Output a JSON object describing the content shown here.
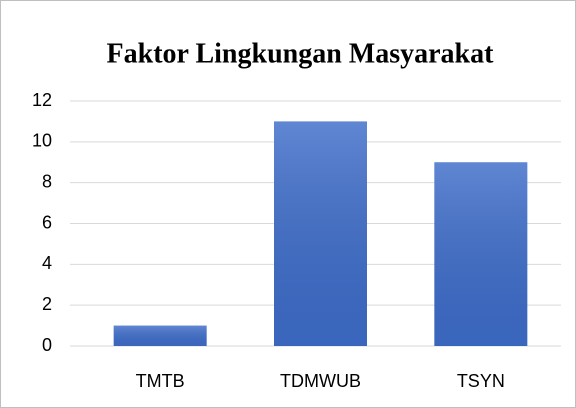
{
  "chart_data": {
    "type": "bar",
    "title": "Faktor Lingkungan Masyarakat",
    "categories": [
      "TMTB",
      "TDMWUB",
      "TSYN"
    ],
    "values": [
      1,
      11,
      9
    ],
    "color": "#3d6cc9",
    "ylim": [
      0,
      12
    ],
    "yticks": [
      0,
      2,
      4,
      6,
      8,
      10,
      12
    ],
    "grid": true
  }
}
